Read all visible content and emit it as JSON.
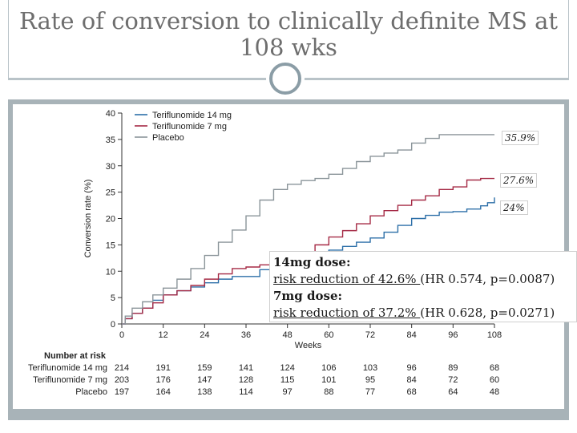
{
  "slide": {
    "title": "Rate of conversion to clinically definite MS at 108 wks",
    "callouts": {
      "c14": "24%",
      "c7": "27.6%",
      "placebo": "35.9%"
    },
    "textbox": {
      "head1": "14mg dose:",
      "line1_u": "risk reduction of 42.6% ",
      "line1_rest": "(HR 0.574, p=0.0087)",
      "head2": "7mg dose:",
      "line2_u": "risk reduction of 37.2% ",
      "line2_rest": "(HR 0.628, p=0.0271)"
    }
  },
  "chart_data": {
    "type": "line",
    "title": "",
    "xlabel": "Weeks",
    "ylabel": "Conversion rate (%)",
    "xlim": [
      0,
      108
    ],
    "ylim": [
      0,
      40
    ],
    "x_ticks": [
      0,
      12,
      24,
      36,
      48,
      60,
      72,
      84,
      96,
      108
    ],
    "y_ticks": [
      0,
      5,
      10,
      15,
      20,
      25,
      30,
      35,
      40
    ],
    "legend_position": "top-left",
    "series": [
      {
        "name": "Teriflunomide 14 mg",
        "color": "#2c6fa8",
        "points": [
          [
            0,
            0
          ],
          [
            1,
            1
          ],
          [
            3,
            2
          ],
          [
            6,
            3
          ],
          [
            9,
            4.5
          ],
          [
            12,
            5.5
          ],
          [
            16,
            6.3
          ],
          [
            20,
            7
          ],
          [
            24,
            7.8
          ],
          [
            28,
            8.5
          ],
          [
            32,
            9
          ],
          [
            36,
            9
          ],
          [
            40,
            10.3
          ],
          [
            44,
            11
          ],
          [
            48,
            11.5
          ],
          [
            52,
            12.6
          ],
          [
            56,
            13.2
          ],
          [
            60,
            14
          ],
          [
            64,
            14.7
          ],
          [
            68,
            15.5
          ],
          [
            72,
            16.3
          ],
          [
            76,
            17.4
          ],
          [
            80,
            18.7
          ],
          [
            84,
            20
          ],
          [
            88,
            20.6
          ],
          [
            92,
            21.2
          ],
          [
            96,
            21.3
          ],
          [
            100,
            21.8
          ],
          [
            104,
            22.4
          ],
          [
            106,
            23
          ],
          [
            108,
            24
          ]
        ]
      },
      {
        "name": "Teriflunomide 7 mg",
        "color": "#a52a45",
        "points": [
          [
            0,
            0
          ],
          [
            1,
            1
          ],
          [
            3,
            2
          ],
          [
            6,
            3
          ],
          [
            9,
            4
          ],
          [
            12,
            5.5
          ],
          [
            16,
            6.3
          ],
          [
            20,
            7.3
          ],
          [
            24,
            8.5
          ],
          [
            28,
            9.5
          ],
          [
            32,
            10.5
          ],
          [
            36,
            10.8
          ],
          [
            40,
            11.2
          ],
          [
            44,
            11.5
          ],
          [
            48,
            12
          ],
          [
            52,
            13.5
          ],
          [
            56,
            15
          ],
          [
            60,
            16.5
          ],
          [
            64,
            17.7
          ],
          [
            68,
            19
          ],
          [
            72,
            20.5
          ],
          [
            76,
            21.5
          ],
          [
            80,
            22.5
          ],
          [
            84,
            23.5
          ],
          [
            88,
            24.3
          ],
          [
            92,
            25.5
          ],
          [
            96,
            26
          ],
          [
            100,
            27.3
          ],
          [
            104,
            27.6
          ],
          [
            108,
            27.6
          ]
        ]
      },
      {
        "name": "Placebo",
        "color": "#8a9499",
        "points": [
          [
            0,
            0
          ],
          [
            1,
            1.5
          ],
          [
            3,
            3
          ],
          [
            6,
            4.2
          ],
          [
            9,
            5.5
          ],
          [
            12,
            6.8
          ],
          [
            16,
            8.5
          ],
          [
            20,
            10.5
          ],
          [
            24,
            13
          ],
          [
            28,
            15.5
          ],
          [
            32,
            17.8
          ],
          [
            36,
            20.5
          ],
          [
            40,
            23.5
          ],
          [
            44,
            25.5
          ],
          [
            48,
            26.5
          ],
          [
            52,
            27.2
          ],
          [
            56,
            27.6
          ],
          [
            60,
            28.4
          ],
          [
            64,
            29.5
          ],
          [
            68,
            30.8
          ],
          [
            72,
            31.8
          ],
          [
            76,
            32.4
          ],
          [
            80,
            33
          ],
          [
            84,
            34.3
          ],
          [
            88,
            35.2
          ],
          [
            92,
            35.9
          ],
          [
            96,
            35.9
          ],
          [
            100,
            35.9
          ],
          [
            104,
            35.9
          ],
          [
            108,
            35.9
          ]
        ]
      }
    ],
    "number_at_risk": {
      "title": "Number at risk",
      "rows": [
        {
          "label": "Teriflunomide 14 mg",
          "values": [
            "214",
            "191",
            "159",
            "141",
            "124",
            "106",
            "103",
            "96",
            "89",
            "68"
          ]
        },
        {
          "label": "Teriflunomide 7 mg",
          "values": [
            "203",
            "176",
            "147",
            "128",
            "115",
            "101",
            "95",
            "84",
            "72",
            "60"
          ]
        },
        {
          "label": "Placebo",
          "values": [
            "197",
            "164",
            "138",
            "114",
            "97",
            "88",
            "77",
            "68",
            "64",
            "48"
          ]
        }
      ]
    }
  }
}
